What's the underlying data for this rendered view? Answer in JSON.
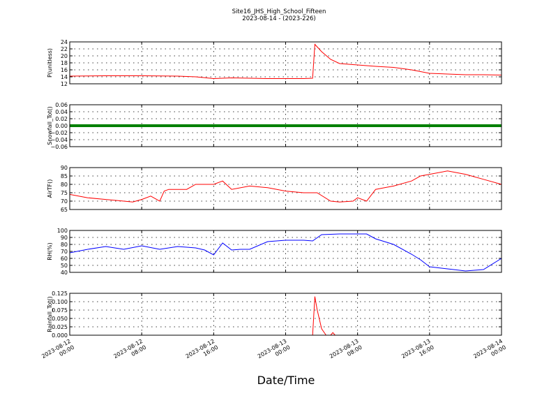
{
  "figure": {
    "title": "Site16_JHS_High_School_Fifteen",
    "subtitle": "2023-08-14 - (2023-226)",
    "xlabel": "Date/Time",
    "x_ticks": [
      "2023-08-12 00:00",
      "2023-08-12 08:00",
      "2023-08-12 16:00",
      "2023-08-13 00:00",
      "2023-08-13 08:00",
      "2023-08-13 16:00",
      "2023-08-14 00:00"
    ]
  },
  "chart_data": [
    {
      "type": "line",
      "ylabel": "P(unitless)",
      "ylim": [
        12,
        24
      ],
      "yticks": [
        "12",
        "14",
        "16",
        "18",
        "20",
        "22",
        "24"
      ],
      "grid": true,
      "color": "#ff0000",
      "x": [
        "2023-08-12 00:00",
        "2023-08-12 04:00",
        "2023-08-12 08:00",
        "2023-08-12 12:00",
        "2023-08-12 14:00",
        "2023-08-12 16:00",
        "2023-08-12 18:00",
        "2023-08-12 20:00",
        "2023-08-12 22:00",
        "2023-08-13 00:00",
        "2023-08-13 02:00",
        "2023-08-13 03:00",
        "2023-08-13 03:15",
        "2023-08-13 04:00",
        "2023-08-13 05:00",
        "2023-08-13 06:00",
        "2023-08-13 08:00",
        "2023-08-13 10:00",
        "2023-08-13 12:00",
        "2023-08-13 14:00",
        "2023-08-13 16:00",
        "2023-08-13 18:00",
        "2023-08-13 20:00",
        "2023-08-13 22:00",
        "2023-08-14 00:00"
      ],
      "values": [
        14.2,
        14.3,
        14.3,
        14.2,
        14.0,
        13.5,
        13.7,
        13.6,
        13.5,
        13.5,
        13.5,
        13.6,
        23.3,
        21.2,
        19.0,
        17.8,
        17.4,
        17.0,
        16.7,
        16.0,
        15.0,
        14.8,
        14.6,
        14.6,
        14.5
      ]
    },
    {
      "type": "scatter",
      "ylabel": "Snowfall_Tot()",
      "ylim": [
        -0.06,
        0.06
      ],
      "yticks": [
        "−0.06",
        "−0.04",
        "−0.02",
        "0.00",
        "0.02",
        "0.04",
        "0.06"
      ],
      "grid": true,
      "color": "#008000",
      "x": [
        "2023-08-12 00:00",
        "2023-08-14 00:00"
      ],
      "values": [
        0,
        0
      ],
      "note_series": "constant"
    },
    {
      "type": "line",
      "ylabel": "AirTF()",
      "ylim": [
        65,
        90
      ],
      "yticks": [
        "65",
        "70",
        "75",
        "80",
        "85",
        "90"
      ],
      "grid": true,
      "color": "#ff0000",
      "x": [
        "2023-08-12 00:00",
        "2023-08-12 02:00",
        "2023-08-12 04:00",
        "2023-08-12 06:00",
        "2023-08-12 07:00",
        "2023-08-12 08:00",
        "2023-08-12 09:00",
        "2023-08-12 10:00",
        "2023-08-12 10:30",
        "2023-08-12 11:00",
        "2023-08-12 13:00",
        "2023-08-12 14:00",
        "2023-08-12 15:00",
        "2023-08-12 16:00",
        "2023-08-12 17:00",
        "2023-08-12 18:00",
        "2023-08-12 20:00",
        "2023-08-12 22:00",
        "2023-08-13 00:00",
        "2023-08-13 02:00",
        "2023-08-13 03:00",
        "2023-08-13 03:30",
        "2023-08-13 05:00",
        "2023-08-13 06:00",
        "2023-08-13 07:30",
        "2023-08-13 08:00",
        "2023-08-13 09:00",
        "2023-08-13 10:00",
        "2023-08-13 11:00",
        "2023-08-13 12:00",
        "2023-08-13 14:00",
        "2023-08-13 15:00",
        "2023-08-13 16:00",
        "2023-08-13 18:00",
        "2023-08-13 20:00",
        "2023-08-13 22:00",
        "2023-08-14 00:00"
      ],
      "values": [
        74,
        72,
        71,
        70,
        69.5,
        71,
        73,
        70,
        76,
        77,
        77,
        80,
        80,
        80,
        82,
        77,
        79,
        78,
        76,
        75,
        75,
        75,
        70,
        69.5,
        70,
        72,
        70,
        77,
        78,
        79,
        82,
        85,
        86,
        88,
        86,
        83,
        80
      ]
    },
    {
      "type": "line",
      "ylabel": "RH(%)",
      "ylim": [
        40,
        100
      ],
      "yticks": [
        "40",
        "50",
        "60",
        "70",
        "80",
        "90",
        "100"
      ],
      "grid": true,
      "color": "#0000ff",
      "x": [
        "2023-08-12 00:00",
        "2023-08-12 02:00",
        "2023-08-12 04:00",
        "2023-08-12 06:00",
        "2023-08-12 08:00",
        "2023-08-12 10:00",
        "2023-08-12 12:00",
        "2023-08-12 14:00",
        "2023-08-12 15:00",
        "2023-08-12 16:00",
        "2023-08-12 17:00",
        "2023-08-12 18:00",
        "2023-08-12 19:00",
        "2023-08-12 20:00",
        "2023-08-12 22:00",
        "2023-08-13 00:00",
        "2023-08-13 02:00",
        "2023-08-13 03:00",
        "2023-08-13 04:00",
        "2023-08-13 06:00",
        "2023-08-13 08:00",
        "2023-08-13 09:00",
        "2023-08-13 10:00",
        "2023-08-13 12:00",
        "2023-08-13 14:00",
        "2023-08-13 15:00",
        "2023-08-13 16:00",
        "2023-08-13 18:00",
        "2023-08-13 20:00",
        "2023-08-13 22:00",
        "2023-08-14 00:00"
      ],
      "values": [
        68,
        73,
        77,
        73,
        78,
        73,
        77,
        75,
        72,
        65,
        82,
        72,
        73,
        73,
        84,
        86,
        86,
        85,
        94,
        95,
        95,
        95,
        88,
        80,
        66,
        58,
        48,
        45,
        42,
        44,
        60
      ]
    },
    {
      "type": "line",
      "ylabel": "Rainfall_Tot()",
      "ylim": [
        0,
        0.13
      ],
      "yticks": [
        "0.000",
        "0.025",
        "0.050",
        "0.075",
        "0.100",
        "0.125"
      ],
      "grid": true,
      "color": "#ff0000",
      "x": [
        "2023-08-12 00:00",
        "2023-08-13 03:00",
        "2023-08-13 03:15",
        "2023-08-13 03:30",
        "2023-08-13 04:00",
        "2023-08-13 04:30",
        "2023-08-13 05:00",
        "2023-08-13 05:15",
        "2023-08-13 05:30",
        "2023-08-14 00:00"
      ],
      "values": [
        0,
        0,
        0.12,
        0.08,
        0.02,
        0,
        0,
        0.008,
        0,
        0
      ]
    }
  ]
}
